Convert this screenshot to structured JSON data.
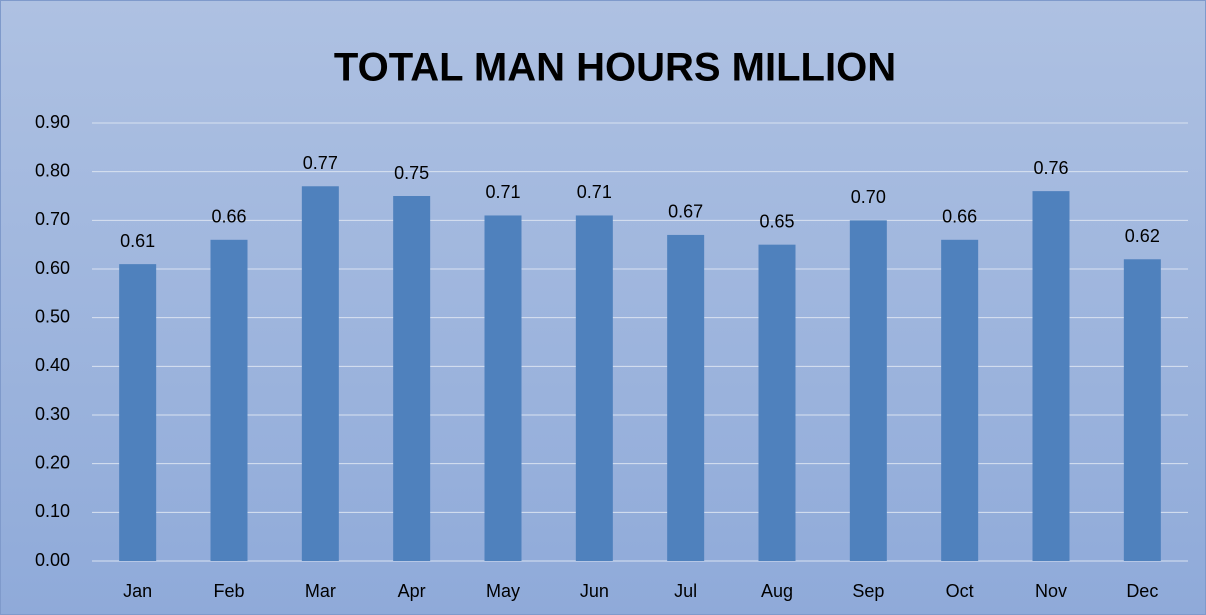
{
  "chart_data": {
    "type": "bar",
    "title": "TOTAL MAN HOURS MILLION",
    "categories": [
      "Jan",
      "Feb",
      "Mar",
      "Apr",
      "May",
      "Jun",
      "Jul",
      "Aug",
      "Sep",
      "Oct",
      "Nov",
      "Dec"
    ],
    "values": [
      0.61,
      0.66,
      0.77,
      0.75,
      0.71,
      0.71,
      0.67,
      0.65,
      0.7,
      0.66,
      0.76,
      0.62
    ],
    "value_labels": [
      "0.61",
      "0.66",
      "0.77",
      "0.75",
      "0.71",
      "0.71",
      "0.67",
      "0.65",
      "0.70",
      "0.66",
      "0.76",
      "0.62"
    ],
    "color": "#4f81bd",
    "ylim": [
      0,
      0.9
    ],
    "yticks": [
      {
        "value": 0,
        "label": "0.00"
      },
      {
        "value": 0.1,
        "label": "0.10"
      },
      {
        "value": 0.2,
        "label": "0.20"
      },
      {
        "value": 0.3,
        "label": "0.30"
      },
      {
        "value": 0.4,
        "label": "0.40"
      },
      {
        "value": 0.5,
        "label": "0.50"
      },
      {
        "value": 0.6,
        "label": "0.60"
      },
      {
        "value": 0.7,
        "label": "0.70"
      },
      {
        "value": 0.8,
        "label": "0.80"
      },
      {
        "value": 0.9,
        "label": "0.90"
      }
    ],
    "grid": true
  }
}
